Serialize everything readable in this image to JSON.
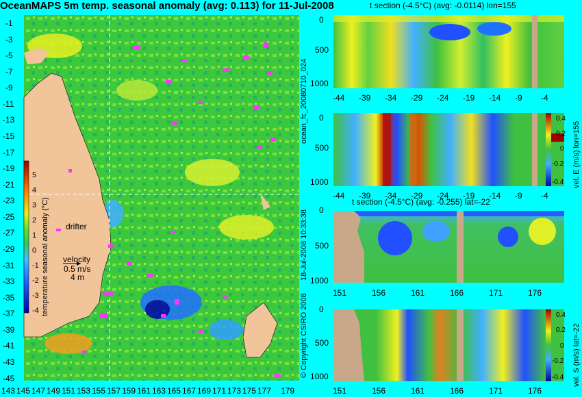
{
  "map": {
    "title": "OceanMAPS 5m temp. seasonal anomaly (avg: 0.113) for 11-Jul-2008",
    "lat_labels": [
      "-1",
      "-3",
      "-5",
      "-7",
      "-9",
      "-11",
      "-13",
      "-15",
      "-17",
      "-19",
      "-21",
      "-23",
      "-25",
      "-27",
      "-29",
      "-31",
      "-33",
      "-35",
      "-37",
      "-39",
      "-41",
      "-43",
      "-45"
    ],
    "lon_labels": [
      "143",
      "145",
      "147",
      "149",
      "151",
      "153",
      "155",
      "157",
      "159",
      "161",
      "163",
      "165",
      "167",
      "169",
      "171",
      "173",
      "175",
      "177",
      "179"
    ],
    "colorbar": {
      "label": "temperature seasonal anomaly (°C)",
      "ticks": [
        "5",
        "4",
        "3",
        "2",
        "1",
        "0",
        "-1",
        "-2",
        "-3",
        "-4"
      ]
    },
    "annotations": {
      "drifter": "drifter",
      "velocity": "velocity",
      "velocity_value": "0.5 m/s",
      "velocity_depth": "4 m"
    },
    "colors": {
      "land": "#f2c49a",
      "ocean": "#3cc83c",
      "drifter": "#ff33ff",
      "contour": "#7fd0ff"
    }
  },
  "panels": {
    "p1": {
      "title": "t section (-4.5°C) (avg: -0.0114) lon=155",
      "y_ticks": [
        "0",
        "500",
        "1000"
      ],
      "x_ticks": [
        "-44",
        "-39",
        "-34",
        "-29",
        "-24",
        "-19",
        "-14",
        "-9",
        "-4"
      ]
    },
    "p2": {
      "x_ticks": [
        "-44",
        "-39",
        "-34",
        "-29",
        "-24",
        "-19",
        "-14",
        "-9",
        "-4"
      ],
      "y_ticks": [
        "0",
        "500",
        "1000"
      ],
      "colorbar_label": "vel. E (m/s) lon=155",
      "colorbar_ticks": [
        "0.4",
        "0.2",
        "0",
        "-0.2",
        "-0.4"
      ]
    },
    "p3": {
      "title": "t section (-4.5°C) (avg: -0.255) lat=-22",
      "y_ticks": [
        "0",
        "500",
        "1000"
      ],
      "x_ticks": [
        "151",
        "156",
        "161",
        "166",
        "171",
        "176"
      ]
    },
    "p4": {
      "x_ticks": [
        "151",
        "156",
        "161",
        "166",
        "171",
        "176"
      ],
      "y_ticks": [
        "0",
        "500",
        "1000"
      ],
      "colorbar_label": "vel. S (m/s) lat=-22",
      "colorbar_ticks": [
        "0.4",
        "0.2",
        "0",
        "-0.2",
        "-0.4"
      ]
    }
  },
  "side_text": {
    "file": "ocean_fc_20080710_024",
    "date": "18-Jul-2008 10:33:38",
    "copyright": "© Copyright CSIRO 2008"
  }
}
